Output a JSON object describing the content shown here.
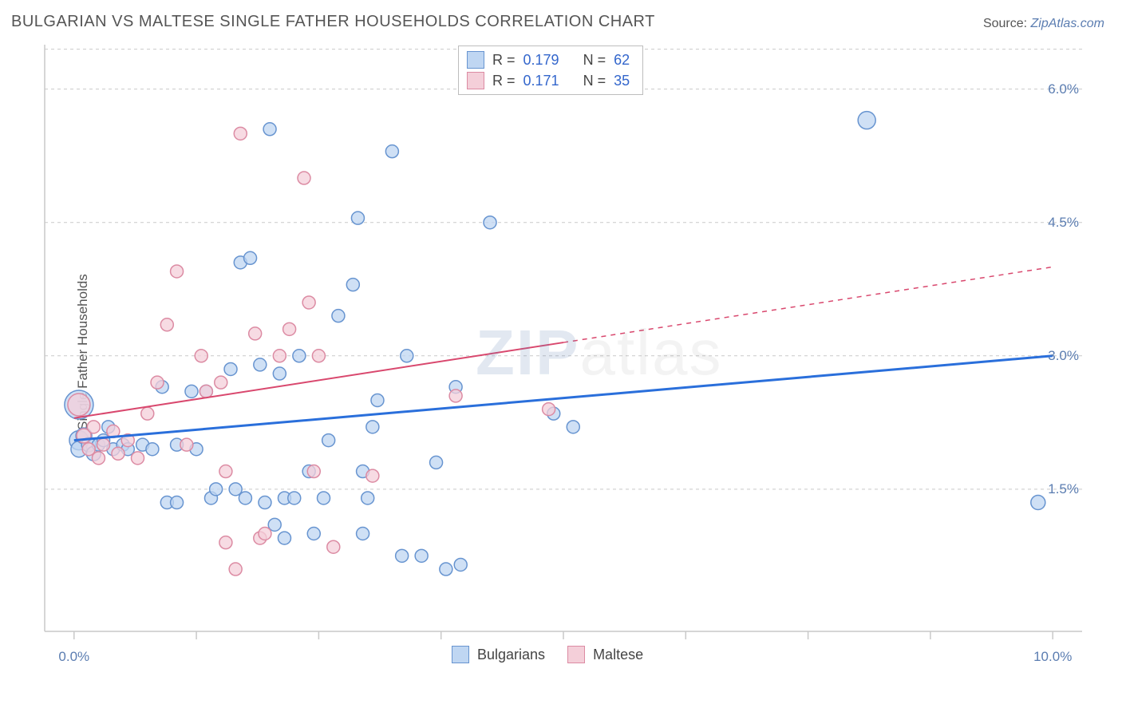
{
  "header": {
    "title": "BULGARIAN VS MALTESE SINGLE FATHER HOUSEHOLDS CORRELATION CHART",
    "source_label": "Source: ",
    "source_site": "ZipAtlas.com"
  },
  "chart": {
    "type": "scatter",
    "ylabel": "Single Father Households",
    "xlim": [
      -0.3,
      10.3
    ],
    "ylim": [
      -0.1,
      6.5
    ],
    "background_color": "#ffffff",
    "grid_color": "#c9c9c9",
    "grid_dash": "4,4",
    "axis_color": "#c9c9c9",
    "ytick_positions": [
      1.5,
      3.0,
      4.5,
      6.0
    ],
    "ytick_labels": [
      "1.5%",
      "3.0%",
      "4.5%",
      "6.0%"
    ],
    "ytick_color": "#5b7db1",
    "xtick_positions": [
      0.0,
      1.25,
      2.5,
      3.75,
      5.0,
      6.25,
      7.5,
      8.75,
      10.0
    ],
    "xtick_label_positions": [
      0.0,
      10.0
    ],
    "xtick_labels": [
      "0.0%",
      "10.0%"
    ],
    "xtick_color": "#5b7db1",
    "label_fontsize": 17,
    "series": [
      {
        "name": "Bulgarians",
        "marker_fill": "#bfd6f2",
        "marker_stroke": "#6794d0",
        "line_color": "#2a6fdb",
        "line_width": 3,
        "line_style": "solid",
        "trend": {
          "x1": 0.0,
          "y1": 2.05,
          "x2": 10.0,
          "y2": 3.0
        },
        "points": [
          {
            "x": 0.05,
            "y": 2.45,
            "r": 18
          },
          {
            "x": 0.05,
            "y": 2.05,
            "r": 12
          },
          {
            "x": 0.05,
            "y": 1.95,
            "r": 10
          },
          {
            "x": 0.1,
            "y": 2.1,
            "r": 10
          },
          {
            "x": 0.15,
            "y": 2.0,
            "r": 9
          },
          {
            "x": 0.2,
            "y": 1.9,
            "r": 9
          },
          {
            "x": 0.25,
            "y": 2.0,
            "r": 8
          },
          {
            "x": 0.3,
            "y": 2.05,
            "r": 8
          },
          {
            "x": 0.35,
            "y": 2.2,
            "r": 8
          },
          {
            "x": 0.4,
            "y": 1.95,
            "r": 8
          },
          {
            "x": 0.5,
            "y": 2.0,
            "r": 8
          },
          {
            "x": 0.55,
            "y": 1.95,
            "r": 8
          },
          {
            "x": 0.7,
            "y": 2.0,
            "r": 8
          },
          {
            "x": 0.8,
            "y": 1.95,
            "r": 8
          },
          {
            "x": 0.9,
            "y": 2.65,
            "r": 8
          },
          {
            "x": 1.05,
            "y": 2.0,
            "r": 8
          },
          {
            "x": 1.2,
            "y": 2.6,
            "r": 8
          },
          {
            "x": 1.35,
            "y": 2.6,
            "r": 8
          },
          {
            "x": 1.4,
            "y": 1.4,
            "r": 8
          },
          {
            "x": 1.45,
            "y": 1.5,
            "r": 8
          },
          {
            "x": 1.6,
            "y": 2.85,
            "r": 8
          },
          {
            "x": 1.65,
            "y": 1.5,
            "r": 8
          },
          {
            "x": 1.7,
            "y": 4.05,
            "r": 8
          },
          {
            "x": 1.75,
            "y": 1.4,
            "r": 8
          },
          {
            "x": 1.8,
            "y": 4.1,
            "r": 8
          },
          {
            "x": 1.9,
            "y": 2.9,
            "r": 8
          },
          {
            "x": 1.95,
            "y": 1.35,
            "r": 8
          },
          {
            "x": 2.0,
            "y": 5.55,
            "r": 8
          },
          {
            "x": 2.05,
            "y": 1.1,
            "r": 8
          },
          {
            "x": 2.1,
            "y": 2.8,
            "r": 8
          },
          {
            "x": 2.15,
            "y": 1.4,
            "r": 8
          },
          {
            "x": 2.15,
            "y": 0.95,
            "r": 8
          },
          {
            "x": 2.25,
            "y": 1.4,
            "r": 8
          },
          {
            "x": 2.3,
            "y": 3.0,
            "r": 8
          },
          {
            "x": 2.4,
            "y": 1.7,
            "r": 8
          },
          {
            "x": 2.45,
            "y": 1.0,
            "r": 8
          },
          {
            "x": 2.55,
            "y": 1.4,
            "r": 8
          },
          {
            "x": 2.7,
            "y": 3.45,
            "r": 8
          },
          {
            "x": 2.85,
            "y": 3.8,
            "r": 8
          },
          {
            "x": 2.9,
            "y": 4.55,
            "r": 8
          },
          {
            "x": 2.95,
            "y": 1.0,
            "r": 8
          },
          {
            "x": 2.95,
            "y": 1.7,
            "r": 8
          },
          {
            "x": 3.0,
            "y": 1.4,
            "r": 8
          },
          {
            "x": 3.1,
            "y": 2.5,
            "r": 8
          },
          {
            "x": 3.25,
            "y": 5.3,
            "r": 8
          },
          {
            "x": 3.35,
            "y": 0.75,
            "r": 8
          },
          {
            "x": 3.4,
            "y": 3.0,
            "r": 8
          },
          {
            "x": 3.55,
            "y": 0.75,
            "r": 8
          },
          {
            "x": 3.7,
            "y": 1.8,
            "r": 8
          },
          {
            "x": 3.8,
            "y": 0.6,
            "r": 8
          },
          {
            "x": 3.9,
            "y": 2.65,
            "r": 8
          },
          {
            "x": 3.95,
            "y": 0.65,
            "r": 8
          },
          {
            "x": 4.25,
            "y": 4.5,
            "r": 8
          },
          {
            "x": 4.9,
            "y": 2.35,
            "r": 8
          },
          {
            "x": 5.1,
            "y": 2.2,
            "r": 8
          },
          {
            "x": 8.1,
            "y": 5.65,
            "r": 11
          },
          {
            "x": 9.85,
            "y": 1.35,
            "r": 9
          },
          {
            "x": 0.95,
            "y": 1.35,
            "r": 8
          },
          {
            "x": 1.05,
            "y": 1.35,
            "r": 8
          },
          {
            "x": 1.25,
            "y": 1.95,
            "r": 8
          },
          {
            "x": 2.6,
            "y": 2.05,
            "r": 8
          },
          {
            "x": 3.05,
            "y": 2.2,
            "r": 8
          }
        ]
      },
      {
        "name": "Maltese",
        "marker_fill": "#f4cfd9",
        "marker_stroke": "#dc8ba3",
        "line_color": "#d9486e",
        "line_width": 2,
        "line_style": "solid-then-dashed",
        "trend_solid": {
          "x1": 0.0,
          "y1": 2.3,
          "x2": 5.0,
          "y2": 3.15
        },
        "trend_dashed": {
          "x1": 5.0,
          "y1": 3.15,
          "x2": 10.0,
          "y2": 4.0
        },
        "points": [
          {
            "x": 0.05,
            "y": 2.45,
            "r": 14
          },
          {
            "x": 0.1,
            "y": 2.1,
            "r": 9
          },
          {
            "x": 0.15,
            "y": 1.95,
            "r": 8
          },
          {
            "x": 0.2,
            "y": 2.2,
            "r": 8
          },
          {
            "x": 0.25,
            "y": 1.85,
            "r": 8
          },
          {
            "x": 0.3,
            "y": 2.0,
            "r": 8
          },
          {
            "x": 0.4,
            "y": 2.15,
            "r": 8
          },
          {
            "x": 0.45,
            "y": 1.9,
            "r": 8
          },
          {
            "x": 0.55,
            "y": 2.05,
            "r": 8
          },
          {
            "x": 0.65,
            "y": 1.85,
            "r": 8
          },
          {
            "x": 0.75,
            "y": 2.35,
            "r": 8
          },
          {
            "x": 0.85,
            "y": 2.7,
            "r": 8
          },
          {
            "x": 0.95,
            "y": 3.35,
            "r": 8
          },
          {
            "x": 1.05,
            "y": 3.95,
            "r": 8
          },
          {
            "x": 1.15,
            "y": 2.0,
            "r": 8
          },
          {
            "x": 1.3,
            "y": 3.0,
            "r": 8
          },
          {
            "x": 1.35,
            "y": 2.6,
            "r": 8
          },
          {
            "x": 1.5,
            "y": 2.7,
            "r": 8
          },
          {
            "x": 1.55,
            "y": 0.9,
            "r": 8
          },
          {
            "x": 1.55,
            "y": 1.7,
            "r": 8
          },
          {
            "x": 1.65,
            "y": 0.6,
            "r": 8
          },
          {
            "x": 1.7,
            "y": 5.5,
            "r": 8
          },
          {
            "x": 1.85,
            "y": 3.25,
            "r": 8
          },
          {
            "x": 1.9,
            "y": 0.95,
            "r": 8
          },
          {
            "x": 1.95,
            "y": 1.0,
            "r": 8
          },
          {
            "x": 2.1,
            "y": 3.0,
            "r": 8
          },
          {
            "x": 2.2,
            "y": 3.3,
            "r": 8
          },
          {
            "x": 2.35,
            "y": 5.0,
            "r": 8
          },
          {
            "x": 2.4,
            "y": 3.6,
            "r": 8
          },
          {
            "x": 2.45,
            "y": 1.7,
            "r": 8
          },
          {
            "x": 2.5,
            "y": 3.0,
            "r": 8
          },
          {
            "x": 2.65,
            "y": 0.85,
            "r": 8
          },
          {
            "x": 3.05,
            "y": 1.65,
            "r": 8
          },
          {
            "x": 3.9,
            "y": 2.55,
            "r": 8
          },
          {
            "x": 4.85,
            "y": 2.4,
            "r": 8
          }
        ]
      }
    ],
    "stats_box": {
      "rows": [
        {
          "swatch_fill": "#bfd6f2",
          "swatch_stroke": "#6794d0",
          "r_label": "R =",
          "r_val": "0.179",
          "n_label": "N =",
          "n_val": "62"
        },
        {
          "swatch_fill": "#f4cfd9",
          "swatch_stroke": "#dc8ba3",
          "r_label": "R =",
          "r_val": "0.171",
          "n_label": "N =",
          "n_val": "35"
        }
      ]
    },
    "bottom_legend": {
      "items": [
        {
          "label": "Bulgarians",
          "fill": "#bfd6f2",
          "stroke": "#6794d0"
        },
        {
          "label": "Maltese",
          "fill": "#f4cfd9",
          "stroke": "#dc8ba3"
        }
      ]
    },
    "watermark": {
      "zip": "ZIP",
      "atlas": "atlas"
    }
  }
}
